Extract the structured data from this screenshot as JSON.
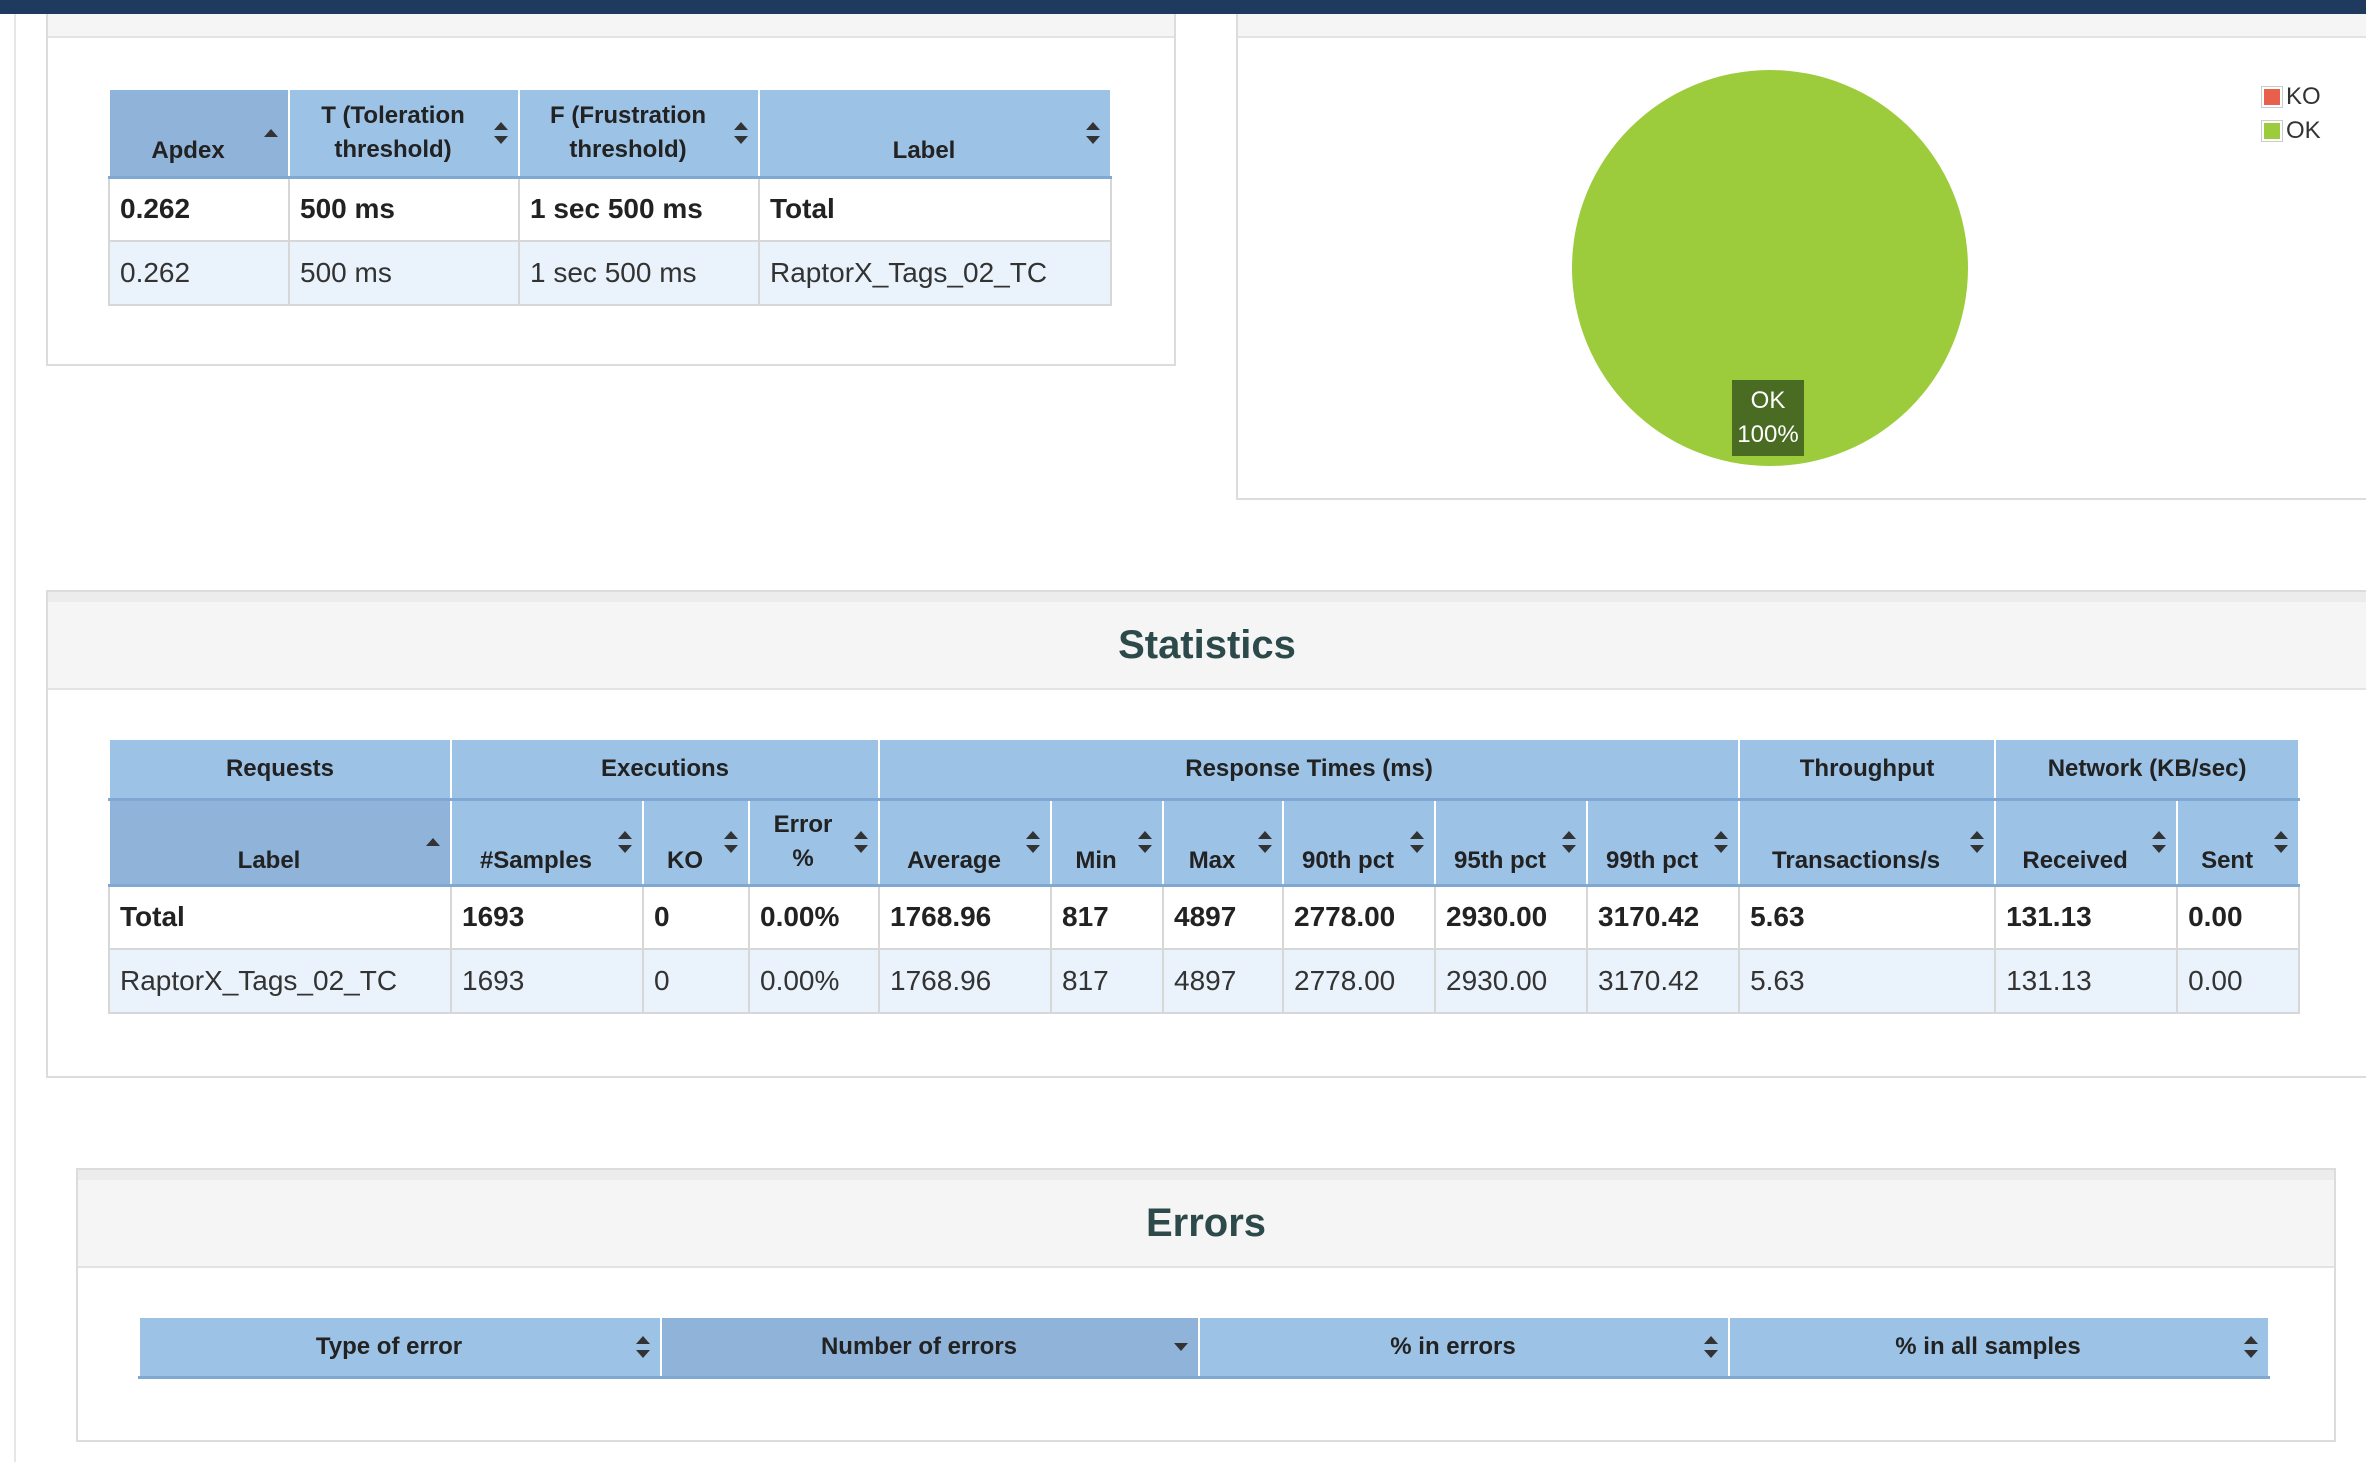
{
  "apdex": {
    "columns": [
      "Apdex",
      "T (Toleration threshold)",
      "F (Frustration threshold)",
      "Label"
    ],
    "rows": [
      {
        "apdex": "0.262",
        "t": "500 ms",
        "f": "1 sec 500 ms",
        "label": "Total"
      },
      {
        "apdex": "0.262",
        "t": "500 ms",
        "f": "1 sec 500 ms",
        "label": "RaptorX_Tags_02_TC"
      }
    ]
  },
  "chart_data": {
    "type": "pie",
    "categories": [
      "KO",
      "OK"
    ],
    "values": [
      0,
      100
    ],
    "colors": [
      "#e8604c",
      "#9ccb3b"
    ],
    "legend_position": "top-right",
    "slice_label": {
      "name": "OK",
      "value": "100%"
    }
  },
  "statistics": {
    "title": "Statistics",
    "groups": [
      "Requests",
      "Executions",
      "Response Times (ms)",
      "Throughput",
      "Network (KB/sec)"
    ],
    "columns": [
      "Label",
      "#Samples",
      "KO",
      "Error %",
      "Average",
      "Min",
      "Max",
      "90th pct",
      "95th pct",
      "99th pct",
      "Transactions/s",
      "Received",
      "Sent"
    ],
    "rows": [
      [
        "Total",
        "1693",
        "0",
        "0.00%",
        "1768.96",
        "817",
        "4897",
        "2778.00",
        "2930.00",
        "3170.42",
        "5.63",
        "131.13",
        "0.00"
      ],
      [
        "RaptorX_Tags_02_TC",
        "1693",
        "0",
        "0.00%",
        "1768.96",
        "817",
        "4897",
        "2778.00",
        "2930.00",
        "3170.42",
        "5.63",
        "131.13",
        "0.00"
      ]
    ]
  },
  "errors": {
    "title": "Errors",
    "columns": [
      "Type of error",
      "Number of errors",
      "% in errors",
      "% in all samples"
    ]
  }
}
